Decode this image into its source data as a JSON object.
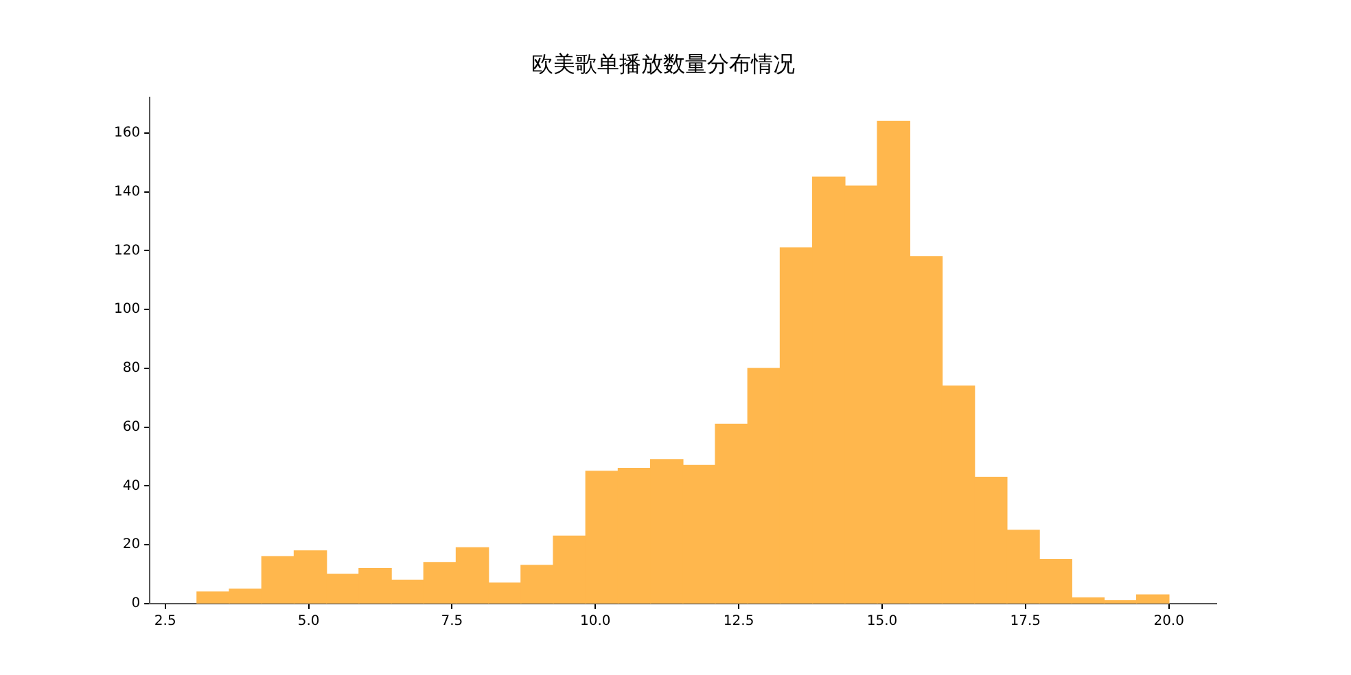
{
  "chart_data": {
    "type": "histogram",
    "title": "欧美歌单播放数量分布情况",
    "bins": [
      3.05,
      3.62,
      4.18,
      4.75,
      5.31,
      5.88,
      6.44,
      7.01,
      7.57,
      8.14,
      8.7,
      9.27,
      9.83,
      10.4,
      10.96,
      11.53,
      12.09,
      12.66,
      13.22,
      13.79,
      14.35,
      14.92,
      15.48,
      16.05,
      16.61,
      17.18,
      17.74,
      18.31,
      18.87,
      19.44,
      20.0
    ],
    "values": [
      4,
      5,
      16,
      18,
      10,
      12,
      8,
      14,
      19,
      7,
      13,
      23,
      45,
      46,
      49,
      47,
      61,
      80,
      121,
      145,
      142,
      164,
      118,
      74,
      43,
      25,
      15,
      2,
      1,
      3
    ],
    "color": "#ffb74d",
    "xlim": [
      2.23,
      20.83
    ],
    "xticks": [
      {
        "value": 2.5,
        "label": "2.5"
      },
      {
        "value": 5,
        "label": "5.0"
      },
      {
        "value": 7.5,
        "label": "7.5"
      },
      {
        "value": 10,
        "label": "10.0"
      },
      {
        "value": 12.5,
        "label": "12.5"
      },
      {
        "value": 15,
        "label": "15.0"
      },
      {
        "value": 17.5,
        "label": "17.5"
      },
      {
        "value": 20,
        "label": "20.0"
      }
    ],
    "ylim": [
      0,
      172
    ],
    "yticks": [
      0,
      20,
      40,
      60,
      80,
      100,
      120,
      140,
      160
    ],
    "grid": false,
    "legend": false
  }
}
